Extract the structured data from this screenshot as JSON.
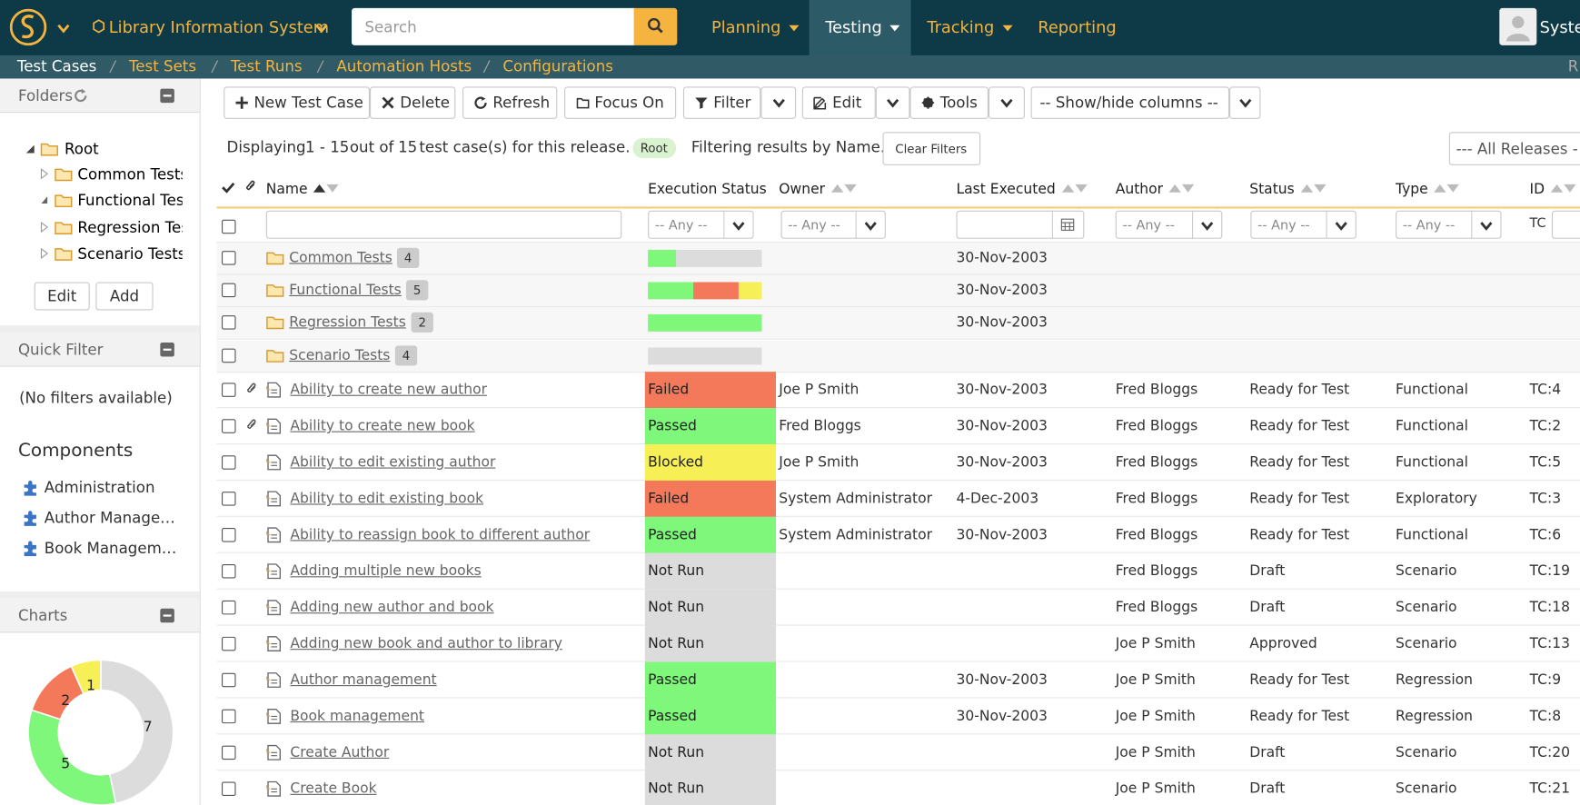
{
  "header": {
    "project": "Library Information System",
    "search_placeholder": "Search",
    "menu": [
      "Planning",
      "Testing",
      "Tracking",
      "Reporting"
    ],
    "active_menu": 1,
    "user": "System"
  },
  "tabs": {
    "items": [
      "Test Cases",
      "Test Sets",
      "Test Runs",
      "Automation Hosts",
      "Configurations"
    ],
    "right": "R"
  },
  "sidebar": {
    "folders": {
      "title": "Folders",
      "root": "Root",
      "items": [
        "Common Tests",
        "Functional Tests",
        "Regression Tests",
        "Scenario Tests"
      ],
      "buttons": [
        "Edit",
        "Add"
      ]
    },
    "quick_filter": {
      "title": "Quick Filter",
      "empty": "(No filters available)"
    },
    "components": {
      "title": "Components",
      "items": [
        "Administration",
        "Author Management",
        "Book Management"
      ]
    },
    "charts": {
      "title": "Charts"
    }
  },
  "chart_data": {
    "type": "donut",
    "values": [
      7,
      5,
      2,
      1
    ],
    "colors": [
      "#dcdcdc",
      "#7ef77a",
      "#f4795a",
      "#f6ef55"
    ]
  },
  "toolbar": [
    "New Test Case",
    "Delete",
    "Refresh",
    "Focus On",
    "Filter",
    "Edit",
    "Tools",
    "-- Show/hide columns --"
  ],
  "info": {
    "prefix": "Displaying",
    "range": "1 - 15",
    "middle": "out of",
    "total": 15,
    "suffix": "test case(s) for this release.",
    "folder": "Root",
    "filtering": "Filtering results by Name.",
    "clear": "Clear Filters",
    "release": "--- All Releases -"
  },
  "execution_colors": {
    "passed": "#7ef77a",
    "failed": "#f4795a",
    "blocked": "#f6ef55",
    "not_run": "#dcdcdc"
  },
  "table": {
    "columns": [
      "Name",
      "Execution Status",
      "Owner",
      "Last Executed",
      "Author",
      "Status",
      "Type",
      "ID"
    ],
    "filters": {
      "any": "-- Any --",
      "id_prefix": "TC"
    },
    "folders": [
      {
        "name": "Common Tests",
        "count": 4,
        "execution": {
          "passed": 1,
          "failed": 0,
          "blocked": 0,
          "not_run": 3
        },
        "last_executed": "30-Nov-2003"
      },
      {
        "name": "Functional Tests",
        "count": 5,
        "execution": {
          "passed": 2,
          "failed": 2,
          "blocked": 1,
          "not_run": 0
        },
        "last_executed": "30-Nov-2003"
      },
      {
        "name": "Regression Tests",
        "count": 2,
        "execution": {
          "passed": 2,
          "failed": 0,
          "blocked": 0,
          "not_run": 0
        },
        "last_executed": "30-Nov-2003"
      },
      {
        "name": "Scenario Tests",
        "count": 4,
        "execution": {
          "passed": 0,
          "failed": 0,
          "blocked": 0,
          "not_run": 4
        }
      }
    ],
    "rows": [
      {
        "attachment": true,
        "name": "Ability to create new author",
        "execution": "Failed",
        "owner": "Joe P Smith",
        "last_executed": "30-Nov-2003",
        "author": "Fred Bloggs",
        "status": "Ready for Test",
        "type": "Functional",
        "id": "TC:4"
      },
      {
        "attachment": true,
        "name": "Ability to create new book",
        "execution": "Passed",
        "owner": "Fred Bloggs",
        "last_executed": "30-Nov-2003",
        "author": "Fred Bloggs",
        "status": "Ready for Test",
        "type": "Functional",
        "id": "TC:2"
      },
      {
        "attachment": false,
        "name": "Ability to edit existing author",
        "execution": "Blocked",
        "owner": "Joe P Smith",
        "last_executed": "30-Nov-2003",
        "author": "Fred Bloggs",
        "status": "Ready for Test",
        "type": "Functional",
        "id": "TC:5"
      },
      {
        "attachment": false,
        "name": "Ability to edit existing book",
        "execution": "Failed",
        "owner": "System Administrator",
        "last_executed": "4-Dec-2003",
        "author": "Fred Bloggs",
        "status": "Ready for Test",
        "type": "Exploratory",
        "id": "TC:3"
      },
      {
        "attachment": false,
        "name": "Ability to reassign book to different author",
        "execution": "Passed",
        "owner": "System Administrator",
        "last_executed": "30-Nov-2003",
        "author": "Fred Bloggs",
        "status": "Ready for Test",
        "type": "Functional",
        "id": "TC:6"
      },
      {
        "attachment": false,
        "name": "Adding multiple new books",
        "execution": "Not Run",
        "author": "Fred Bloggs",
        "status": "Draft",
        "type": "Scenario",
        "id": "TC:19"
      },
      {
        "attachment": false,
        "name": "Adding new author and book",
        "execution": "Not Run",
        "author": "Fred Bloggs",
        "status": "Draft",
        "type": "Scenario",
        "id": "TC:18"
      },
      {
        "attachment": false,
        "name": "Adding new book and author to library",
        "execution": "Not Run",
        "author": "Joe P Smith",
        "status": "Approved",
        "type": "Scenario",
        "id": "TC:13"
      },
      {
        "attachment": false,
        "name": "Author management",
        "execution": "Passed",
        "last_executed": "30-Nov-2003",
        "author": "Joe P Smith",
        "status": "Ready for Test",
        "type": "Regression",
        "id": "TC:9"
      },
      {
        "attachment": false,
        "name": "Book management",
        "execution": "Passed",
        "last_executed": "30-Nov-2003",
        "author": "Joe P Smith",
        "status": "Ready for Test",
        "type": "Regression",
        "id": "TC:8"
      },
      {
        "attachment": false,
        "name": "Create Author",
        "execution": "Not Run",
        "author": "Joe P Smith",
        "status": "Draft",
        "type": "Scenario",
        "id": "TC:20"
      },
      {
        "attachment": false,
        "name": "Create Book",
        "execution": "Not Run",
        "author": "Joe P Smith",
        "status": "Draft",
        "type": "Scenario",
        "id": "TC:21"
      }
    ]
  }
}
